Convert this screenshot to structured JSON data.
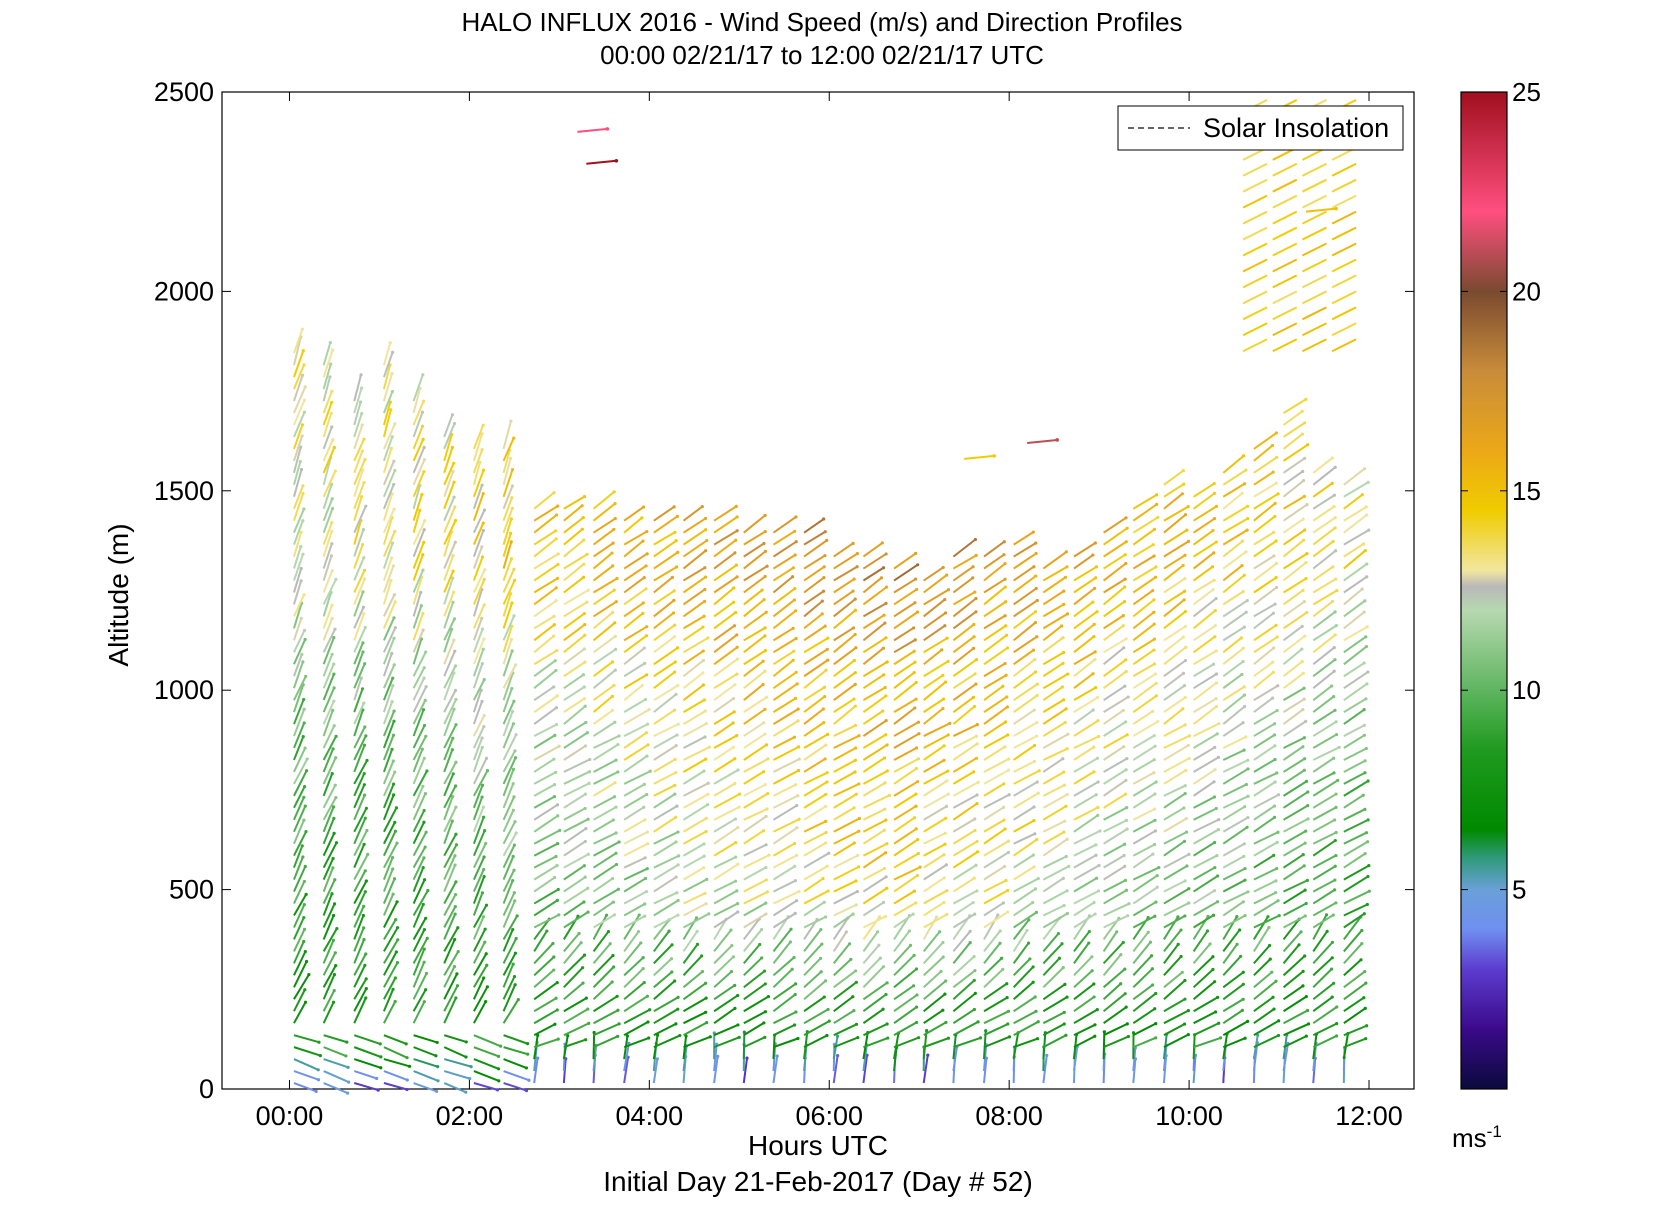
{
  "title": {
    "line1": "HALO INFLUX 2016 - Wind Speed (m/s) and Direction Profiles",
    "line2": "00:00 02/21/17 to 12:00 02/21/17  UTC"
  },
  "footer": "Initial Day 21-Feb-2017 (Day # 52)",
  "legend": {
    "label": "Solar Insolation",
    "placement": "top-right"
  },
  "colorbar": {
    "ticks": [
      "25",
      "20",
      "15",
      "10",
      "5"
    ],
    "unit": "ms",
    "unit_exp": "-1",
    "range": [
      0,
      25
    ],
    "stops": [
      {
        "v": 0,
        "c": "#0a0a3c"
      },
      {
        "v": 1.5,
        "c": "#3b0a8a"
      },
      {
        "v": 3,
        "c": "#5c3ccf"
      },
      {
        "v": 4,
        "c": "#6f8ff0"
      },
      {
        "v": 5,
        "c": "#6aa0d8"
      },
      {
        "v": 5.8,
        "c": "#2f9a7a"
      },
      {
        "v": 6.5,
        "c": "#008a00"
      },
      {
        "v": 8.5,
        "c": "#1f9a1f"
      },
      {
        "v": 10,
        "c": "#5fb55f"
      },
      {
        "v": 12,
        "c": "#b7d8b0"
      },
      {
        "v": 12.6,
        "c": "#b8b8b8"
      },
      {
        "v": 13,
        "c": "#f2e6a0"
      },
      {
        "v": 14.5,
        "c": "#f0cc00"
      },
      {
        "v": 16,
        "c": "#eca818"
      },
      {
        "v": 18,
        "c": "#c88c3a"
      },
      {
        "v": 20,
        "c": "#7a4a30"
      },
      {
        "v": 22,
        "c": "#ff4f7f"
      },
      {
        "v": 25,
        "c": "#a0101e"
      }
    ]
  },
  "chart_data": {
    "type": "wind-barb profile",
    "xlabel": "Hours UTC",
    "ylabel": "Altitude (m)",
    "xlim": [
      -0.75,
      12.5
    ],
    "ylim": [
      0,
      2500
    ],
    "x_ticks": [
      {
        "v": 0,
        "label": "00:00"
      },
      {
        "v": 2,
        "label": "02:00"
      },
      {
        "v": 4,
        "label": "04:00"
      },
      {
        "v": 6,
        "label": "06:00"
      },
      {
        "v": 8,
        "label": "08:00"
      },
      {
        "v": 10,
        "label": "10:00"
      },
      {
        "v": 12,
        "label": "12:00"
      }
    ],
    "y_ticks": [
      {
        "v": 0,
        "label": "0"
      },
      {
        "v": 500,
        "label": "500"
      },
      {
        "v": 1000,
        "label": "1000"
      },
      {
        "v": 1500,
        "label": "1500"
      },
      {
        "v": 2000,
        "label": "2000"
      },
      {
        "v": 2500,
        "label": "2500"
      }
    ],
    "profile_hours": [
      0.05,
      0.38,
      0.72,
      1.05,
      1.38,
      1.72,
      2.05,
      2.38,
      2.72,
      3.05,
      3.38,
      3.72,
      4.05,
      4.38,
      4.72,
      5.05,
      5.38,
      5.72,
      6.05,
      6.38,
      6.72,
      7.05,
      7.38,
      7.72,
      8.05,
      8.38,
      8.72,
      9.05,
      9.38,
      9.72,
      10.05,
      10.38,
      10.72,
      11.05,
      11.38,
      11.72
    ],
    "profile_top_m": [
      1860,
      1820,
      1740,
      1820,
      1730,
      1650,
      1610,
      1610,
      1460,
      1480,
      1480,
      1440,
      1430,
      1440,
      1430,
      1420,
      1420,
      1400,
      1360,
      1340,
      1320,
      1300,
      1340,
      1360,
      1380,
      1330,
      1360,
      1420,
      1470,
      1520,
      1500,
      1560,
      1620,
      1700,
      1560,
      1530
    ],
    "profile_speed_ms": [
      {
        "alt": 20,
        "speed": 4
      },
      {
        "alt": 100,
        "speed": 8
      },
      {
        "alt": 500,
        "speed": 9
      },
      {
        "alt": 1000,
        "speed": 11
      },
      {
        "alt": 1300,
        "speed": 13
      }
    ],
    "upper_features": [
      {
        "hour": 3.2,
        "alt": 2400,
        "speed": 22
      },
      {
        "hour": 3.3,
        "alt": 2320,
        "speed": 25
      },
      {
        "hour": 7.5,
        "alt": 1580,
        "speed": 14.5
      },
      {
        "hour": 8.2,
        "alt": 1620,
        "speed": 21
      },
      {
        "hour": 11.3,
        "alt": 2200,
        "speed": 15
      }
    ]
  }
}
